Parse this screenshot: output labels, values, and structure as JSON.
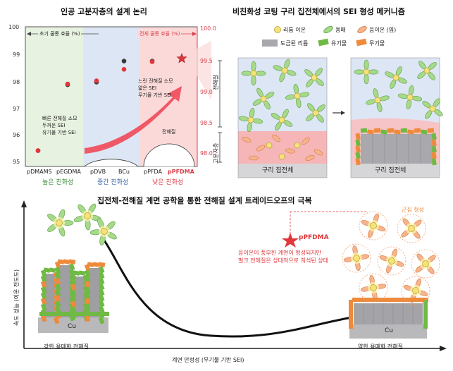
{
  "titles": {
    "left_top": "인공 고분자층의 설계 논리",
    "right_top": "비친화성 코팅 구리 집전체에서의 SEI 형성 메커니즘",
    "bottom": "집전체-전해질 계면 공학을 통한 전해질 설계 트레이드오프의 극복"
  },
  "chart_data": {
    "type": "scatter",
    "title": "인공 고분자층의 설계 논리",
    "categories": [
      "pDMAMS",
      "pEGDMA",
      "pDVB",
      "BCu",
      "pPFDA",
      "pPFDMA"
    ],
    "y_left_label": "초기 쿨롱 효율 (%)",
    "y_right_label": "전체 쿨롱 효율 (%)",
    "y_left_ticks": [
      "100",
      "99",
      "98",
      "97",
      "96",
      "95"
    ],
    "y_right_ticks": [
      "100.0",
      "99.5",
      "99.0",
      "98.5",
      "98.0"
    ],
    "ylim_left": [
      94.7,
      100
    ],
    "ylim_right": [
      97.8,
      100
    ],
    "series": [
      {
        "name": "초기 쿨롱 효율 (%)",
        "color": "#3a3a3a",
        "values": [
          95.3,
          97.8,
          97.9,
          98.7,
          98.7,
          null
        ]
      },
      {
        "name": "전체 쿨롱 효율 (%)",
        "color": "#e2363a",
        "values": [
          98.05,
          99.1,
          99.15,
          99.33,
          99.45,
          99.5
        ]
      }
    ],
    "regions": [
      {
        "label": "높은 친화성",
        "color": "#e7f2e0",
        "label_color": "#3c8a3a"
      },
      {
        "label": "중간 친화성",
        "color": "#dde6f4",
        "label_color": "#3a63a8"
      },
      {
        "label": "낮은 친화성",
        "color": "#fbd9d9",
        "label_color": "#d8404a"
      }
    ],
    "annotations": {
      "left": [
        "빠른 전해질 소모",
        "두꺼운 SEI",
        "유기물 기반 SEI"
      ],
      "right": [
        "느린 전해질 소모",
        "얇은 SEI",
        "무기물 기반 SEI"
      ],
      "electrolyte": "전해질"
    }
  },
  "legend": {
    "lithium_ion": "리튬 이온",
    "solvent": "용매",
    "anion": "음이온 (염)",
    "plated_li": "도금된 리튬",
    "organic": "유기물",
    "inorganic": "무기물"
  },
  "mechanism": {
    "axis_electrolyte": "전해질",
    "axis_polymer": "고분자층",
    "collector_label": "구리 집전체"
  },
  "bottom": {
    "y_axis": "속도 성능 (이온 전도도)",
    "x_axis": "계면 안정성 (무기물 기반 SEI)",
    "cu": "Cu",
    "left_caption": "강한 용매화 전해질",
    "right_caption": "약한 용매화 전해질",
    "cluster": "군집 형성",
    "star_label": "pPFDMA",
    "star_desc_1": "음이온이 풍부한 계면이 형성되지만",
    "star_desc_2": "벌크 전해질은 상대적으로 희석된 상태"
  }
}
